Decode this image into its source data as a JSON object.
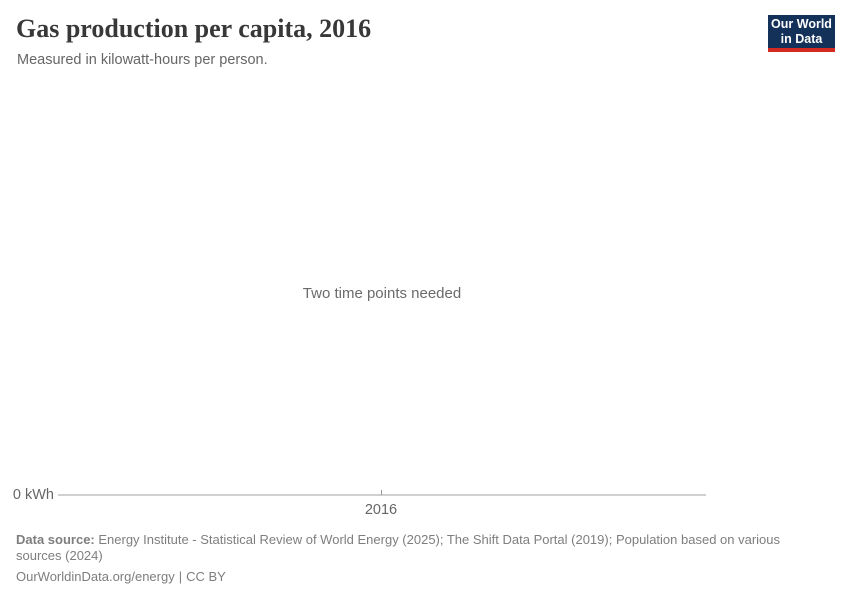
{
  "header": {
    "title": "Gas production per capita, 2016",
    "subtitle": "Measured in kilowatt-hours per person.",
    "logo": {
      "line1": "Our World",
      "line2": "in Data",
      "background_color": "#14315a",
      "accent_color": "#d42b21",
      "text_color": "#ffffff"
    }
  },
  "chart_data": {
    "type": "line",
    "title": "Gas production per capita, 2016",
    "subtitle": "Measured in kilowatt-hours per person.",
    "unit": "kilowatt-hours per person",
    "empty_state_message": "Two time points needed",
    "series": [],
    "x_axis": {
      "tick_labels": [
        "2016"
      ],
      "range": [
        2016,
        2016
      ]
    },
    "y_axis": {
      "tick_labels": [
        "0 kWh"
      ],
      "min_label": "0 kWh"
    },
    "grid": false,
    "legend": "none",
    "axis_line_color": "#d0d0d0"
  },
  "footer": {
    "data_source_label": "Data source:",
    "data_source_text": " Energy Institute - Statistical Review of World Energy (2025); The Shift Data Portal (2019); Population based on various sources (2024)",
    "site_link": "OurWorldinData.org/energy",
    "separator": "|",
    "license": "CC BY"
  }
}
